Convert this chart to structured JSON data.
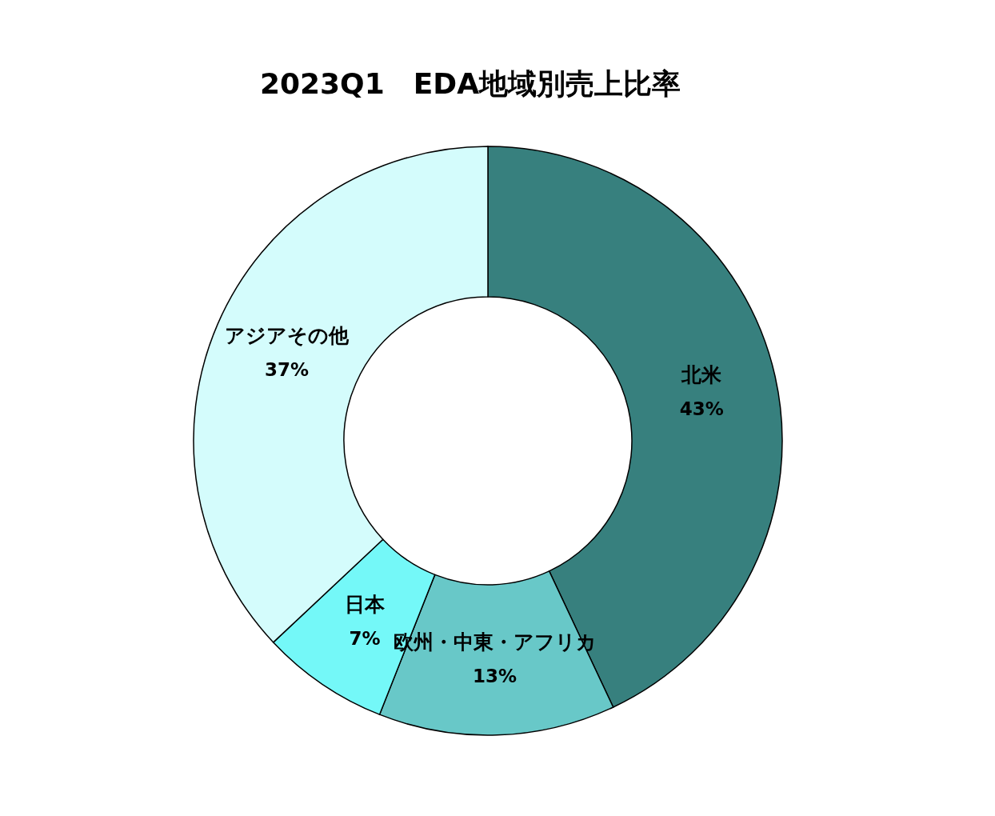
{
  "chart_data": {
    "type": "donut",
    "title": "2023Q1　EDA地域別売上比率",
    "categories": [
      "北米",
      "欧州・中東・アフリカ",
      "日本",
      "アジアその他"
    ],
    "values": [
      43,
      13,
      7,
      37
    ],
    "colors": [
      "#37807e",
      "#68c8c8",
      "#74f8f8",
      "#d4fcfc"
    ],
    "value_labels": [
      "43%",
      "13%",
      "7%",
      "37%"
    ],
    "legend": false
  }
}
